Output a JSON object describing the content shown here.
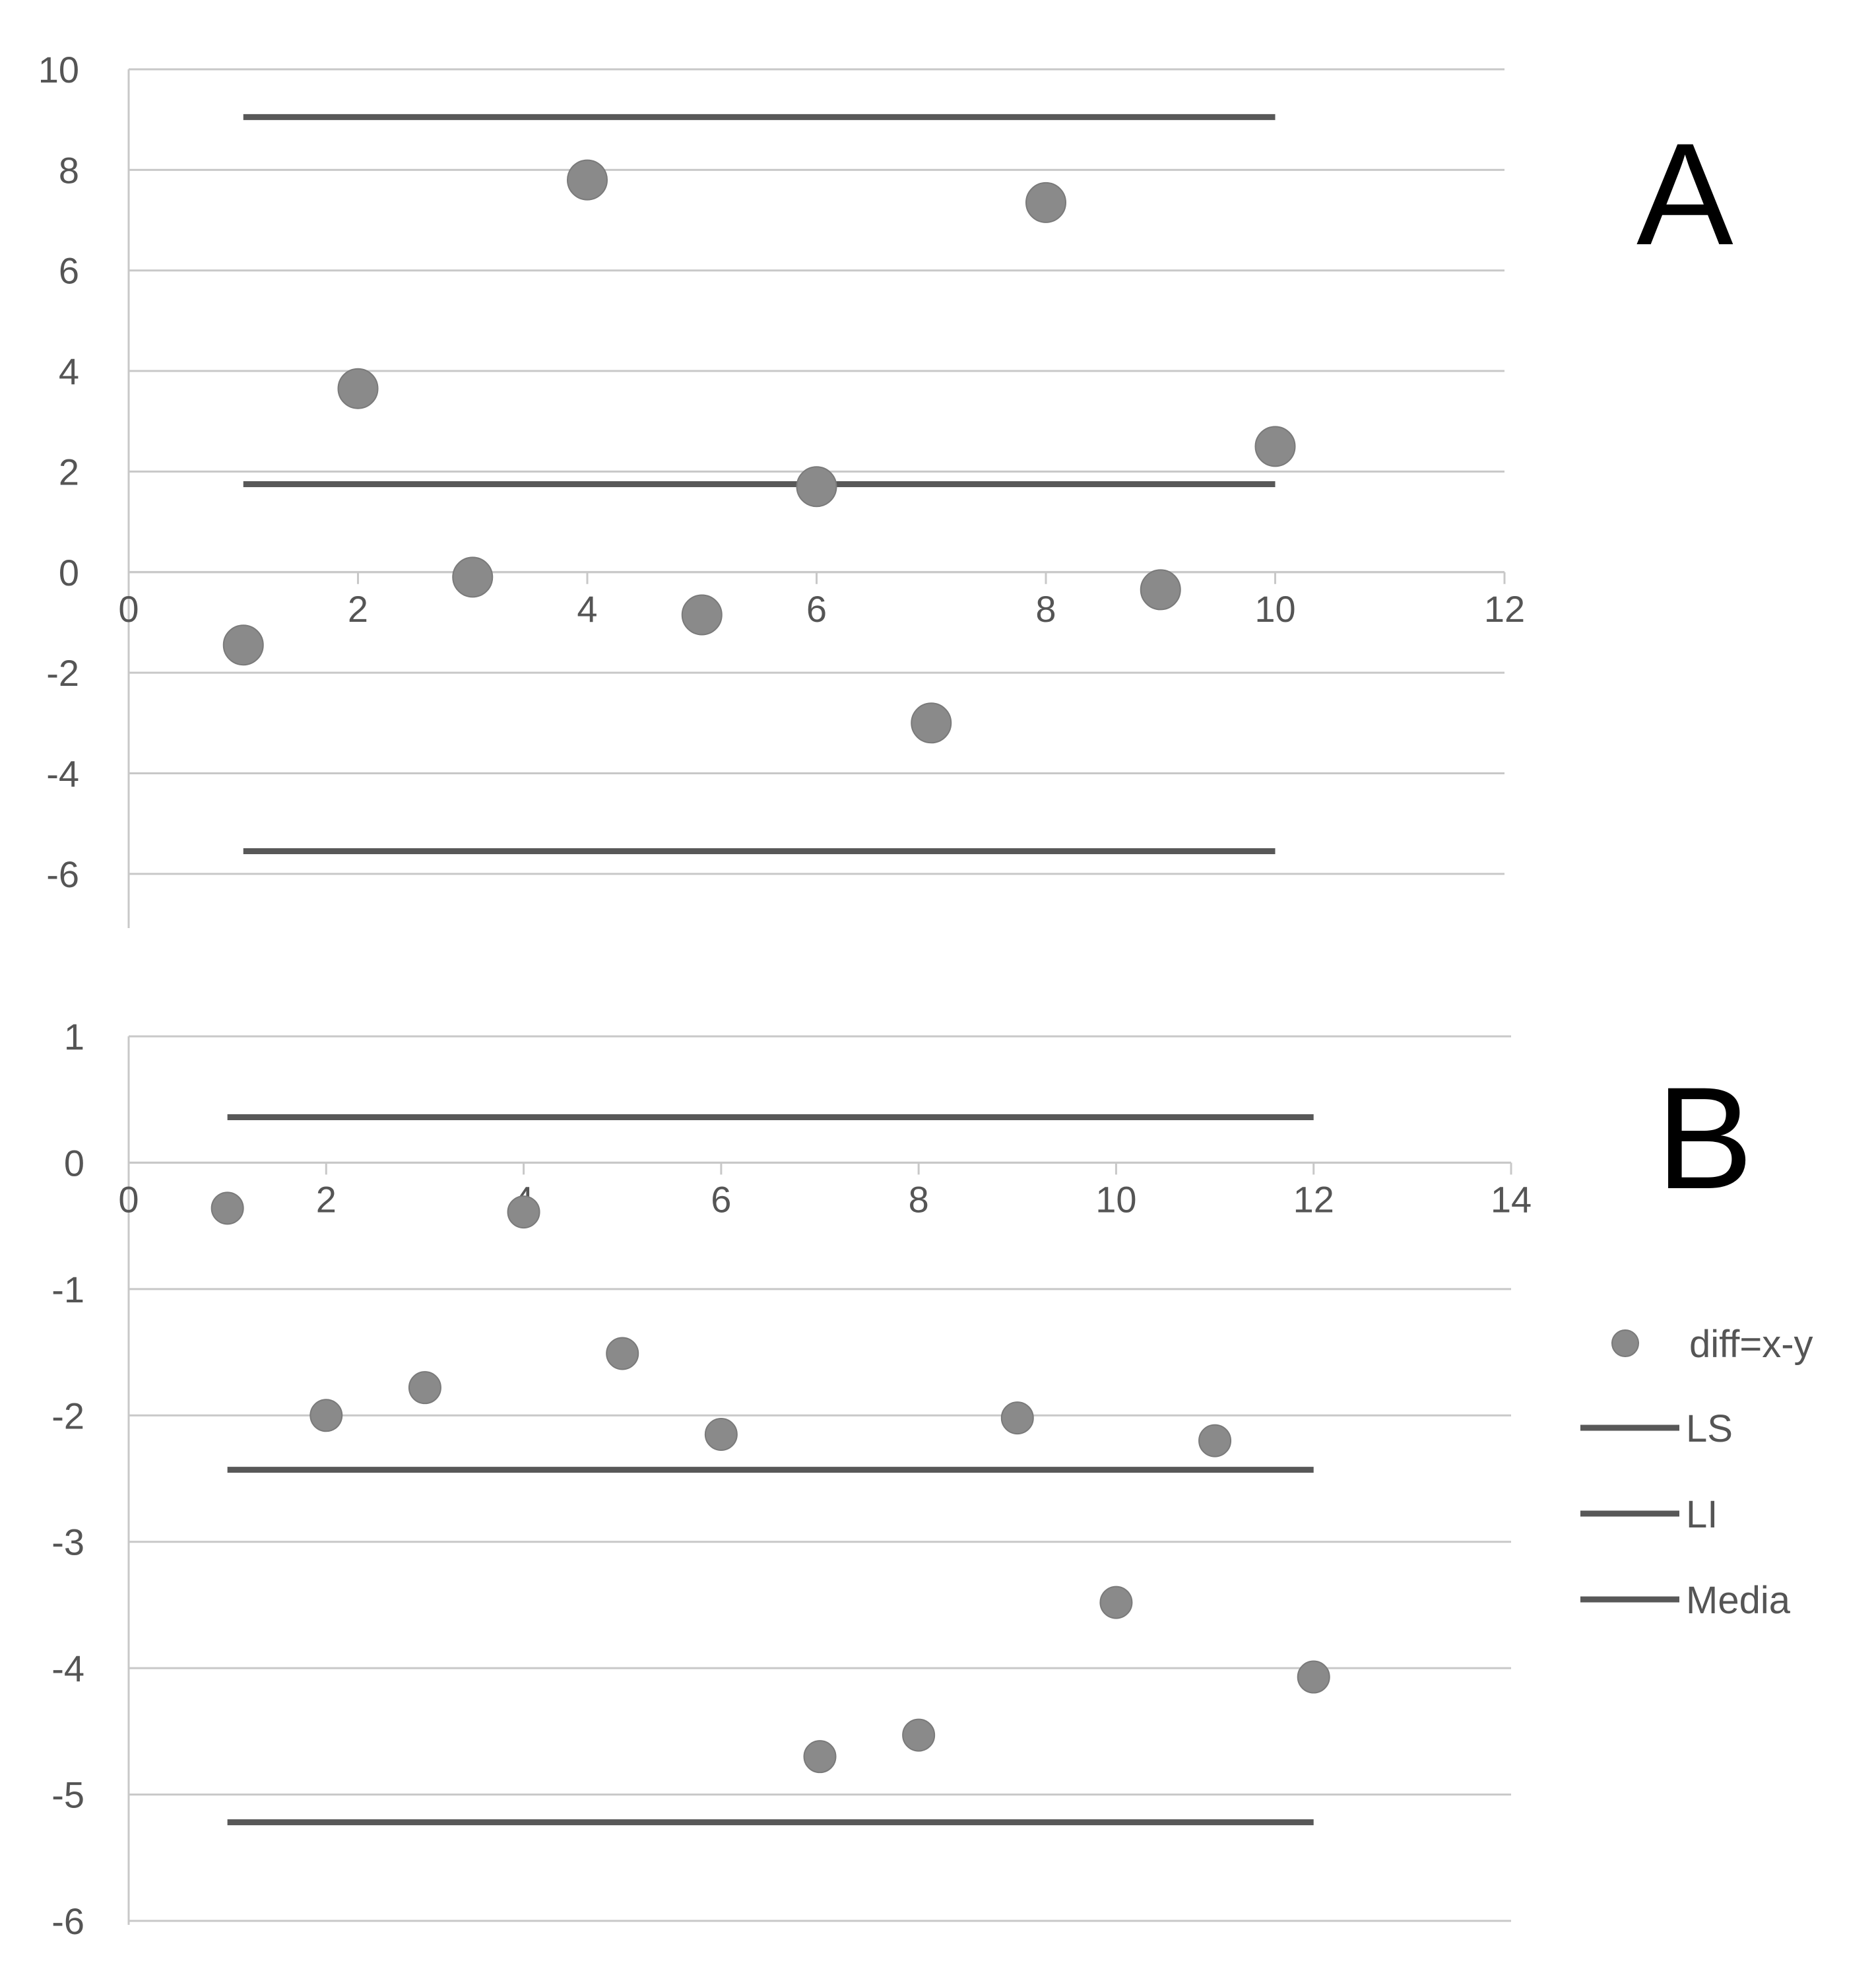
{
  "chart_data": [
    {
      "type": "scatter",
      "panel_label": "A",
      "xlim": [
        0,
        12
      ],
      "ylim": [
        -7,
        10
      ],
      "x_ticks": [
        0,
        2,
        4,
        6,
        8,
        10,
        12
      ],
      "y_ticks": [
        10,
        8,
        6,
        4,
        2,
        0,
        -2,
        -4,
        -6
      ],
      "grid": true,
      "series": [
        {
          "key": "diff",
          "kind": "scatter",
          "x": [
            1,
            2,
            3,
            4,
            5,
            6,
            7,
            8,
            9,
            10
          ],
          "y": [
            -1.45,
            3.65,
            -0.1,
            7.8,
            -0.85,
            1.7,
            -3.0,
            7.35,
            -0.35,
            2.5
          ]
        },
        {
          "key": "ls",
          "kind": "hline",
          "y": 9.05,
          "x_range": [
            1,
            10
          ]
        },
        {
          "key": "media",
          "kind": "hline",
          "y": 1.75,
          "x_range": [
            1,
            10
          ]
        },
        {
          "key": "li",
          "kind": "hline",
          "y": -5.55,
          "x_range": [
            1,
            10
          ]
        }
      ]
    },
    {
      "type": "scatter",
      "panel_label": "B",
      "xlim": [
        0,
        14
      ],
      "ylim": [
        -6,
        1
      ],
      "x_ticks": [
        0,
        2,
        4,
        6,
        8,
        10,
        12,
        14
      ],
      "y_ticks": [
        1,
        0,
        -1,
        -2,
        -3,
        -4,
        -5,
        -6
      ],
      "grid": true,
      "series": [
        {
          "key": "diff",
          "kind": "scatter",
          "x": [
            1,
            2,
            3,
            4,
            5,
            6,
            7,
            8,
            9,
            10,
            11,
            12
          ],
          "y": [
            -0.36,
            -2.0,
            -1.78,
            -0.39,
            -1.51,
            -2.15,
            -4.7,
            -4.53,
            -2.02,
            -3.48,
            -2.2,
            -4.07
          ]
        },
        {
          "key": "ls",
          "kind": "hline",
          "y": 0.36,
          "x_range": [
            1,
            12
          ]
        },
        {
          "key": "media",
          "kind": "hline",
          "y": -2.43,
          "x_range": [
            1,
            12
          ]
        },
        {
          "key": "li",
          "kind": "hline",
          "y": -5.22,
          "x_range": [
            1,
            12
          ]
        }
      ]
    }
  ],
  "legend": {
    "placement": "right",
    "items": [
      {
        "label": "diff=x-y",
        "marker": "circle"
      },
      {
        "label": "LS",
        "marker": "line"
      },
      {
        "label": "LI",
        "marker": "line"
      },
      {
        "label": "Media",
        "marker": "line"
      }
    ]
  },
  "colors": {
    "point": "#8a8a8a",
    "line": "#585858",
    "grid": "#c8c8c8",
    "text": "#555555"
  }
}
